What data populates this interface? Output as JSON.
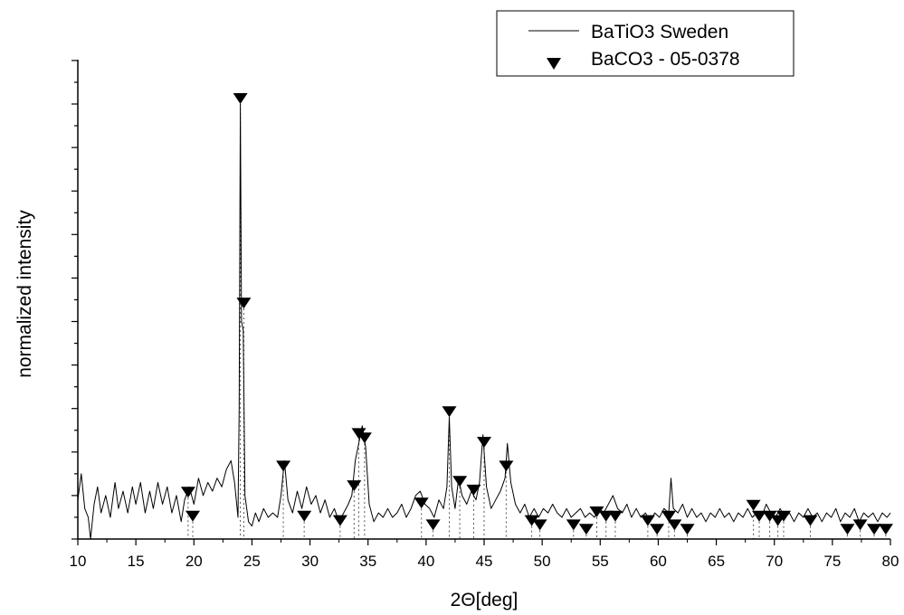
{
  "chart_data": {
    "type": "line",
    "xlabel": "2Θ[deg]",
    "ylabel": "normalized intensity",
    "xlim": [
      10,
      80
    ],
    "ylim": [
      0,
      1.1
    ],
    "x_ticks": [
      10,
      15,
      20,
      25,
      30,
      35,
      40,
      45,
      50,
      55,
      60,
      65,
      70,
      75,
      80
    ],
    "y_tick_labels_shown": false,
    "grid": false,
    "legend_position": "top-right",
    "series": [
      {
        "name": "BaTiO3 Sweden",
        "kind": "line",
        "color": "#000000",
        "points": [
          [
            10.0,
            0.09
          ],
          [
            10.3,
            0.15
          ],
          [
            10.6,
            0.07
          ],
          [
            10.9,
            0.05
          ],
          [
            11.1,
            0.0
          ],
          [
            11.4,
            0.08
          ],
          [
            11.7,
            0.12
          ],
          [
            12.0,
            0.06
          ],
          [
            12.4,
            0.1
          ],
          [
            12.8,
            0.05
          ],
          [
            13.2,
            0.13
          ],
          [
            13.5,
            0.07
          ],
          [
            13.9,
            0.11
          ],
          [
            14.3,
            0.06
          ],
          [
            14.7,
            0.12
          ],
          [
            15.0,
            0.08
          ],
          [
            15.4,
            0.13
          ],
          [
            15.8,
            0.06
          ],
          [
            16.2,
            0.11
          ],
          [
            16.5,
            0.07
          ],
          [
            16.9,
            0.13
          ],
          [
            17.3,
            0.08
          ],
          [
            17.7,
            0.12
          ],
          [
            18.1,
            0.06
          ],
          [
            18.5,
            0.1
          ],
          [
            18.9,
            0.04
          ],
          [
            19.2,
            0.09
          ],
          [
            19.6,
            0.12
          ],
          [
            20.0,
            0.08
          ],
          [
            20.4,
            0.14
          ],
          [
            20.8,
            0.1
          ],
          [
            21.2,
            0.13
          ],
          [
            21.6,
            0.11
          ],
          [
            22.0,
            0.14
          ],
          [
            22.4,
            0.12
          ],
          [
            22.8,
            0.16
          ],
          [
            23.2,
            0.18
          ],
          [
            23.5,
            0.13
          ],
          [
            23.8,
            0.05
          ],
          [
            23.9,
            0.3
          ],
          [
            24.0,
            1.0
          ],
          [
            24.1,
            0.5
          ],
          [
            24.25,
            0.48
          ],
          [
            24.4,
            0.1
          ],
          [
            24.7,
            0.04
          ],
          [
            25.0,
            0.03
          ],
          [
            25.3,
            0.06
          ],
          [
            25.6,
            0.04
          ],
          [
            26.0,
            0.07
          ],
          [
            26.4,
            0.05
          ],
          [
            26.8,
            0.06
          ],
          [
            27.2,
            0.05
          ],
          [
            27.5,
            0.1
          ],
          [
            27.8,
            0.18
          ],
          [
            28.1,
            0.09
          ],
          [
            28.5,
            0.06
          ],
          [
            28.9,
            0.11
          ],
          [
            29.3,
            0.07
          ],
          [
            29.7,
            0.12
          ],
          [
            30.1,
            0.08
          ],
          [
            30.5,
            0.1
          ],
          [
            30.9,
            0.06
          ],
          [
            31.3,
            0.09
          ],
          [
            31.7,
            0.05
          ],
          [
            32.1,
            0.07
          ],
          [
            32.5,
            0.04
          ],
          [
            32.9,
            0.06
          ],
          [
            33.3,
            0.08
          ],
          [
            33.6,
            0.1
          ],
          [
            33.9,
            0.18
          ],
          [
            34.2,
            0.22
          ],
          [
            34.5,
            0.26
          ],
          [
            34.8,
            0.21
          ],
          [
            35.1,
            0.08
          ],
          [
            35.5,
            0.04
          ],
          [
            35.9,
            0.06
          ],
          [
            36.3,
            0.05
          ],
          [
            36.7,
            0.07
          ],
          [
            37.1,
            0.05
          ],
          [
            37.5,
            0.06
          ],
          [
            37.9,
            0.08
          ],
          [
            38.3,
            0.05
          ],
          [
            38.7,
            0.07
          ],
          [
            39.1,
            0.1
          ],
          [
            39.5,
            0.11
          ],
          [
            39.9,
            0.08
          ],
          [
            40.3,
            0.07
          ],
          [
            40.7,
            0.05
          ],
          [
            41.1,
            0.09
          ],
          [
            41.5,
            0.07
          ],
          [
            41.8,
            0.12
          ],
          [
            42.0,
            0.28
          ],
          [
            42.2,
            0.12
          ],
          [
            42.5,
            0.07
          ],
          [
            42.8,
            0.14
          ],
          [
            43.1,
            0.1
          ],
          [
            43.5,
            0.08
          ],
          [
            43.9,
            0.11
          ],
          [
            44.3,
            0.09
          ],
          [
            44.6,
            0.13
          ],
          [
            44.9,
            0.24
          ],
          [
            45.2,
            0.12
          ],
          [
            45.6,
            0.07
          ],
          [
            46.0,
            0.09
          ],
          [
            46.4,
            0.11
          ],
          [
            46.8,
            0.14
          ],
          [
            47.0,
            0.22
          ],
          [
            47.3,
            0.13
          ],
          [
            47.7,
            0.08
          ],
          [
            48.1,
            0.06
          ],
          [
            48.5,
            0.08
          ],
          [
            48.9,
            0.05
          ],
          [
            49.3,
            0.07
          ],
          [
            49.7,
            0.05
          ],
          [
            50.1,
            0.07
          ],
          [
            50.5,
            0.06
          ],
          [
            50.9,
            0.08
          ],
          [
            51.3,
            0.06
          ],
          [
            51.7,
            0.05
          ],
          [
            52.1,
            0.07
          ],
          [
            52.5,
            0.05
          ],
          [
            52.9,
            0.06
          ],
          [
            53.3,
            0.07
          ],
          [
            53.7,
            0.05
          ],
          [
            54.1,
            0.06
          ],
          [
            54.5,
            0.05
          ],
          [
            54.9,
            0.07
          ],
          [
            55.3,
            0.06
          ],
          [
            55.7,
            0.08
          ],
          [
            56.1,
            0.1
          ],
          [
            56.5,
            0.07
          ],
          [
            56.9,
            0.06
          ],
          [
            57.3,
            0.08
          ],
          [
            57.7,
            0.05
          ],
          [
            58.1,
            0.07
          ],
          [
            58.5,
            0.05
          ],
          [
            58.9,
            0.06
          ],
          [
            59.3,
            0.04
          ],
          [
            59.7,
            0.06
          ],
          [
            60.1,
            0.05
          ],
          [
            60.5,
            0.07
          ],
          [
            60.9,
            0.06
          ],
          [
            61.1,
            0.14
          ],
          [
            61.3,
            0.07
          ],
          [
            61.7,
            0.06
          ],
          [
            62.1,
            0.08
          ],
          [
            62.5,
            0.05
          ],
          [
            62.9,
            0.07
          ],
          [
            63.3,
            0.05
          ],
          [
            63.7,
            0.06
          ],
          [
            64.1,
            0.04
          ],
          [
            64.5,
            0.06
          ],
          [
            64.9,
            0.05
          ],
          [
            65.3,
            0.07
          ],
          [
            65.7,
            0.05
          ],
          [
            66.1,
            0.06
          ],
          [
            66.5,
            0.04
          ],
          [
            66.9,
            0.06
          ],
          [
            67.3,
            0.05
          ],
          [
            67.7,
            0.07
          ],
          [
            68.1,
            0.05
          ],
          [
            68.5,
            0.06
          ],
          [
            68.9,
            0.05
          ],
          [
            69.3,
            0.08
          ],
          [
            69.7,
            0.06
          ],
          [
            70.1,
            0.05
          ],
          [
            70.5,
            0.07
          ],
          [
            70.9,
            0.05
          ],
          [
            71.3,
            0.06
          ],
          [
            71.7,
            0.04
          ],
          [
            72.1,
            0.06
          ],
          [
            72.5,
            0.05
          ],
          [
            72.9,
            0.07
          ],
          [
            73.3,
            0.05
          ],
          [
            73.7,
            0.06
          ],
          [
            74.1,
            0.04
          ],
          [
            74.5,
            0.06
          ],
          [
            74.9,
            0.05
          ],
          [
            75.3,
            0.07
          ],
          [
            75.7,
            0.04
          ],
          [
            76.1,
            0.06
          ],
          [
            76.5,
            0.05
          ],
          [
            76.9,
            0.07
          ],
          [
            77.3,
            0.04
          ],
          [
            77.7,
            0.06
          ],
          [
            78.1,
            0.05
          ],
          [
            78.5,
            0.06
          ],
          [
            78.9,
            0.04
          ],
          [
            79.3,
            0.06
          ],
          [
            79.7,
            0.05
          ],
          [
            80.0,
            0.06
          ]
        ]
      },
      {
        "name": "BaCO3 - 05-0378",
        "kind": "markers",
        "marker": "down-triangle",
        "color": "#000000",
        "drop_lines": true,
        "points": [
          [
            19.5,
            0.095
          ],
          [
            19.9,
            0.04
          ],
          [
            24.0,
            1.0
          ],
          [
            24.3,
            0.53
          ],
          [
            27.7,
            0.155
          ],
          [
            29.5,
            0.04
          ],
          [
            32.6,
            0.03
          ],
          [
            33.8,
            0.11
          ],
          [
            34.2,
            0.23
          ],
          [
            34.7,
            0.22
          ],
          [
            39.6,
            0.07
          ],
          [
            40.6,
            0.02
          ],
          [
            42.0,
            0.28
          ],
          [
            42.9,
            0.12
          ],
          [
            44.1,
            0.1
          ],
          [
            45.0,
            0.21
          ],
          [
            46.9,
            0.155
          ],
          [
            49.1,
            0.03
          ],
          [
            49.8,
            0.02
          ],
          [
            52.7,
            0.02
          ],
          [
            53.8,
            0.01
          ],
          [
            54.7,
            0.05
          ],
          [
            55.5,
            0.04
          ],
          [
            56.3,
            0.04
          ],
          [
            59.1,
            0.03
          ],
          [
            59.9,
            0.01
          ],
          [
            60.9,
            0.04
          ],
          [
            61.4,
            0.02
          ],
          [
            62.5,
            0.01
          ],
          [
            68.2,
            0.065
          ],
          [
            68.7,
            0.04
          ],
          [
            69.6,
            0.04
          ],
          [
            70.3,
            0.03
          ],
          [
            70.8,
            0.04
          ],
          [
            73.1,
            0.03
          ],
          [
            76.3,
            0.01
          ],
          [
            77.4,
            0.02
          ],
          [
            78.6,
            0.01
          ],
          [
            79.6,
            0.01
          ]
        ]
      }
    ]
  }
}
